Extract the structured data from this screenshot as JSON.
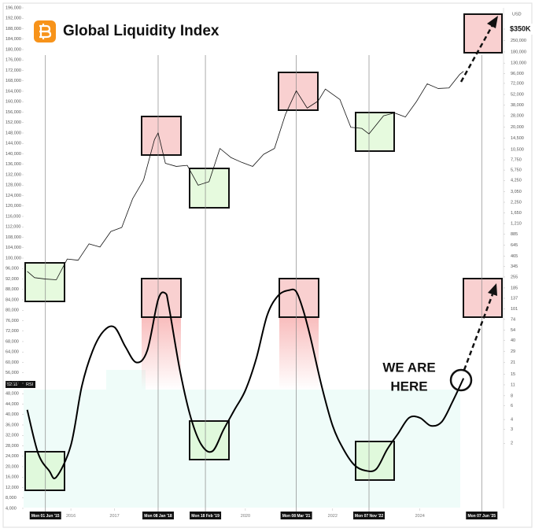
{
  "chart_data": {
    "type": "line",
    "title": "Global Liquidity Index",
    "annotation": [
      "WE ARE",
      "HERE"
    ],
    "current_label": "52.11",
    "current_label_unit": "RSI",
    "y2_label": "USD",
    "grid": false,
    "xlim": [
      "2014-12",
      "2025-12"
    ],
    "xticks": [
      {
        "value": "2015-06",
        "label": "Mon 01 Jun '15",
        "boxed": true
      },
      {
        "value": "2016-01",
        "label": "2016"
      },
      {
        "value": "2017-01",
        "label": "2017"
      },
      {
        "value": "2018-01",
        "label": "Mon 08 Jan '18",
        "boxed": true
      },
      {
        "value": "2019-02",
        "label": "Mon 18 Feb '19",
        "boxed": true
      },
      {
        "value": "2020-01",
        "label": "2020"
      },
      {
        "value": "2021-03",
        "label": "Mon 08 Mar '21",
        "boxed": true
      },
      {
        "value": "2022-01",
        "label": "2022"
      },
      {
        "value": "2022-11",
        "label": "Mon 07 Nov '22",
        "boxed": true
      },
      {
        "value": "2024-01",
        "label": "2024"
      },
      {
        "value": "2025-06",
        "label": "Mon 07 Jun '25",
        "boxed": true
      }
    ],
    "ylim": [
      4000,
      196000
    ],
    "yticks": [
      {
        "value": 4000,
        "label": "4,000"
      },
      {
        "value": 8000,
        "label": "8,000"
      },
      {
        "value": 12000,
        "label": "12,000"
      },
      {
        "value": 16000,
        "label": "16,000"
      },
      {
        "value": 20000,
        "label": "20,000"
      },
      {
        "value": 24000,
        "label": "24,000"
      },
      {
        "value": 28000,
        "label": "28,000"
      },
      {
        "value": 32000,
        "label": "32,000"
      },
      {
        "value": 36000,
        "label": "36,000"
      },
      {
        "value": 40000,
        "label": "40,000"
      },
      {
        "value": 44000,
        "label": "44,000"
      },
      {
        "value": 48000,
        "label": "48,000"
      },
      {
        "value": 52000,
        "label": "52,000"
      },
      {
        "value": 56000,
        "label": "56,000"
      },
      {
        "value": 60000,
        "label": "60,000"
      },
      {
        "value": 64000,
        "label": "64,000"
      },
      {
        "value": 68000,
        "label": "68,000"
      },
      {
        "value": 72000,
        "label": "72,000"
      },
      {
        "value": 76000,
        "label": "76,000"
      },
      {
        "value": 80000,
        "label": "80,000"
      },
      {
        "value": 84000,
        "label": "84,000"
      },
      {
        "value": 88000,
        "label": "88,000"
      },
      {
        "value": 92000,
        "label": "92,000"
      },
      {
        "value": 96000,
        "label": "96,000"
      },
      {
        "value": 100000,
        "label": "100,000"
      },
      {
        "value": 104000,
        "label": "104,000"
      },
      {
        "value": 108000,
        "label": "108,000"
      },
      {
        "value": 112000,
        "label": "112,000"
      },
      {
        "value": 116000,
        "label": "116,000"
      },
      {
        "value": 120000,
        "label": "120,000"
      },
      {
        "value": 124000,
        "label": "124,000"
      },
      {
        "value": 128000,
        "label": "128,000"
      },
      {
        "value": 132000,
        "label": "132,000"
      },
      {
        "value": 136000,
        "label": "136,000"
      },
      {
        "value": 140000,
        "label": "140,000"
      },
      {
        "value": 144000,
        "label": "144,000"
      },
      {
        "value": 148000,
        "label": "148,000"
      },
      {
        "value": 152000,
        "label": "152,000"
      },
      {
        "value": 156000,
        "label": "156,000"
      },
      {
        "value": 160000,
        "label": "160,000"
      },
      {
        "value": 164000,
        "label": "164,000"
      },
      {
        "value": 168000,
        "label": "168,000"
      },
      {
        "value": 172000,
        "label": "172,000"
      },
      {
        "value": 176000,
        "label": "176,000"
      },
      {
        "value": 180000,
        "label": "180,000"
      },
      {
        "value": 184000,
        "label": "184,000"
      },
      {
        "value": 188000,
        "label": "188,000"
      },
      {
        "value": 192000,
        "label": "192,000"
      },
      {
        "value": 196000,
        "label": "196,000"
      }
    ],
    "y2_log": true,
    "y2lim": [
      0.3,
      650000
    ],
    "y2ticks": [
      {
        "value": 350000,
        "label": "$350K",
        "boxed": true
      },
      {
        "value": 250000,
        "label": "250,000"
      },
      {
        "value": 180000,
        "label": "180,000"
      },
      {
        "value": 130000,
        "label": "130,000"
      },
      {
        "value": 96000,
        "label": "96,000"
      },
      {
        "value": 72000,
        "label": "72,000"
      },
      {
        "value": 52000,
        "label": "52,000"
      },
      {
        "value": 38000,
        "label": "38,000"
      },
      {
        "value": 28000,
        "label": "28,000"
      },
      {
        "value": 20000,
        "label": "20,000"
      },
      {
        "value": 14500,
        "label": "14,500"
      },
      {
        "value": 10500,
        "label": "10,500"
      },
      {
        "value": 7750,
        "label": "7,750"
      },
      {
        "value": 5750,
        "label": "5,750"
      },
      {
        "value": 4250,
        "label": "4,250"
      },
      {
        "value": 3050,
        "label": "3,050"
      },
      {
        "value": 2250,
        "label": "2,250"
      },
      {
        "value": 1650,
        "label": "1,650"
      },
      {
        "value": 1210,
        "label": "1,210"
      },
      885,
      645,
      465,
      345,
      255,
      185,
      137,
      101,
      74,
      54,
      40,
      29,
      21,
      15,
      11,
      8,
      6,
      4,
      3,
      2
    ],
    "series": [
      {
        "color": "#111111",
        "axis": "y2",
        "width": 0.8,
        "smooth": false,
        "x": [
          "2015-01",
          "2015-03",
          "2015-06",
          "2015-09",
          "2015-12",
          "2016-03",
          "2016-06",
          "2016-09",
          "2016-12",
          "2017-03",
          "2017-06",
          "2017-09",
          "2017-12",
          "2018-01",
          "2018-03",
          "2018-06",
          "2018-09",
          "2018-12",
          "2019-03",
          "2019-06",
          "2019-09",
          "2019-12",
          "2020-03",
          "2020-06",
          "2020-09",
          "2020-12",
          "2021-03",
          "2021-06",
          "2021-09",
          "2021-11",
          "2022-03",
          "2022-06",
          "2022-09",
          "2022-11",
          "2023-03",
          "2023-06",
          "2023-09",
          "2023-12",
          "2024-03",
          "2024-06",
          "2024-09",
          "2024-12",
          "2025-01"
        ],
        "values": [
          300,
          250,
          240,
          235,
          430,
          415,
          670,
          610,
          960,
          1080,
          2500,
          4300,
          14000,
          17000,
          7000,
          6400,
          6600,
          3700,
          4100,
          10800,
          8300,
          7200,
          6400,
          9100,
          10800,
          29000,
          58000,
          35000,
          43000,
          61000,
          45000,
          20000,
          19400,
          16500,
          28000,
          30400,
          27000,
          42000,
          71000,
          62000,
          63000,
          94000,
          102000
        ]
      },
      {
        "color": "#000000",
        "width": 2,
        "smooth": true,
        "x": [
          "2015-01",
          "2015-04",
          "2015-07",
          "2015-09",
          "2016-01",
          "2016-04",
          "2016-07",
          "2016-10",
          "2017-01",
          "2017-04",
          "2017-07",
          "2017-10",
          "2018-01",
          "2018-03",
          "2018-04",
          "2018-07",
          "2018-10",
          "2019-01",
          "2019-04",
          "2019-07",
          "2019-10",
          "2020-01",
          "2020-04",
          "2020-07",
          "2020-10",
          "2021-01",
          "2021-03",
          "2021-05",
          "2021-07",
          "2021-10",
          "2022-01",
          "2022-04",
          "2022-07",
          "2022-10",
          "2023-01",
          "2023-04",
          "2023-07",
          "2023-10",
          "2024-01",
          "2024-04",
          "2024-07",
          "2024-10",
          "2025-01"
        ],
        "values": [
          41800,
          25100,
          18500,
          16000,
          28200,
          50800,
          64500,
          72000,
          73500,
          66000,
          60000,
          64500,
          84100,
          86500,
          81100,
          56900,
          38750,
          28200,
          26000,
          34200,
          41800,
          49300,
          61500,
          78100,
          85600,
          87700,
          87100,
          79600,
          69000,
          50800,
          35700,
          26650,
          20600,
          18500,
          19100,
          26650,
          32700,
          38750,
          38750,
          35700,
          37200,
          45000,
          53900
        ]
      }
    ]
  }
}
